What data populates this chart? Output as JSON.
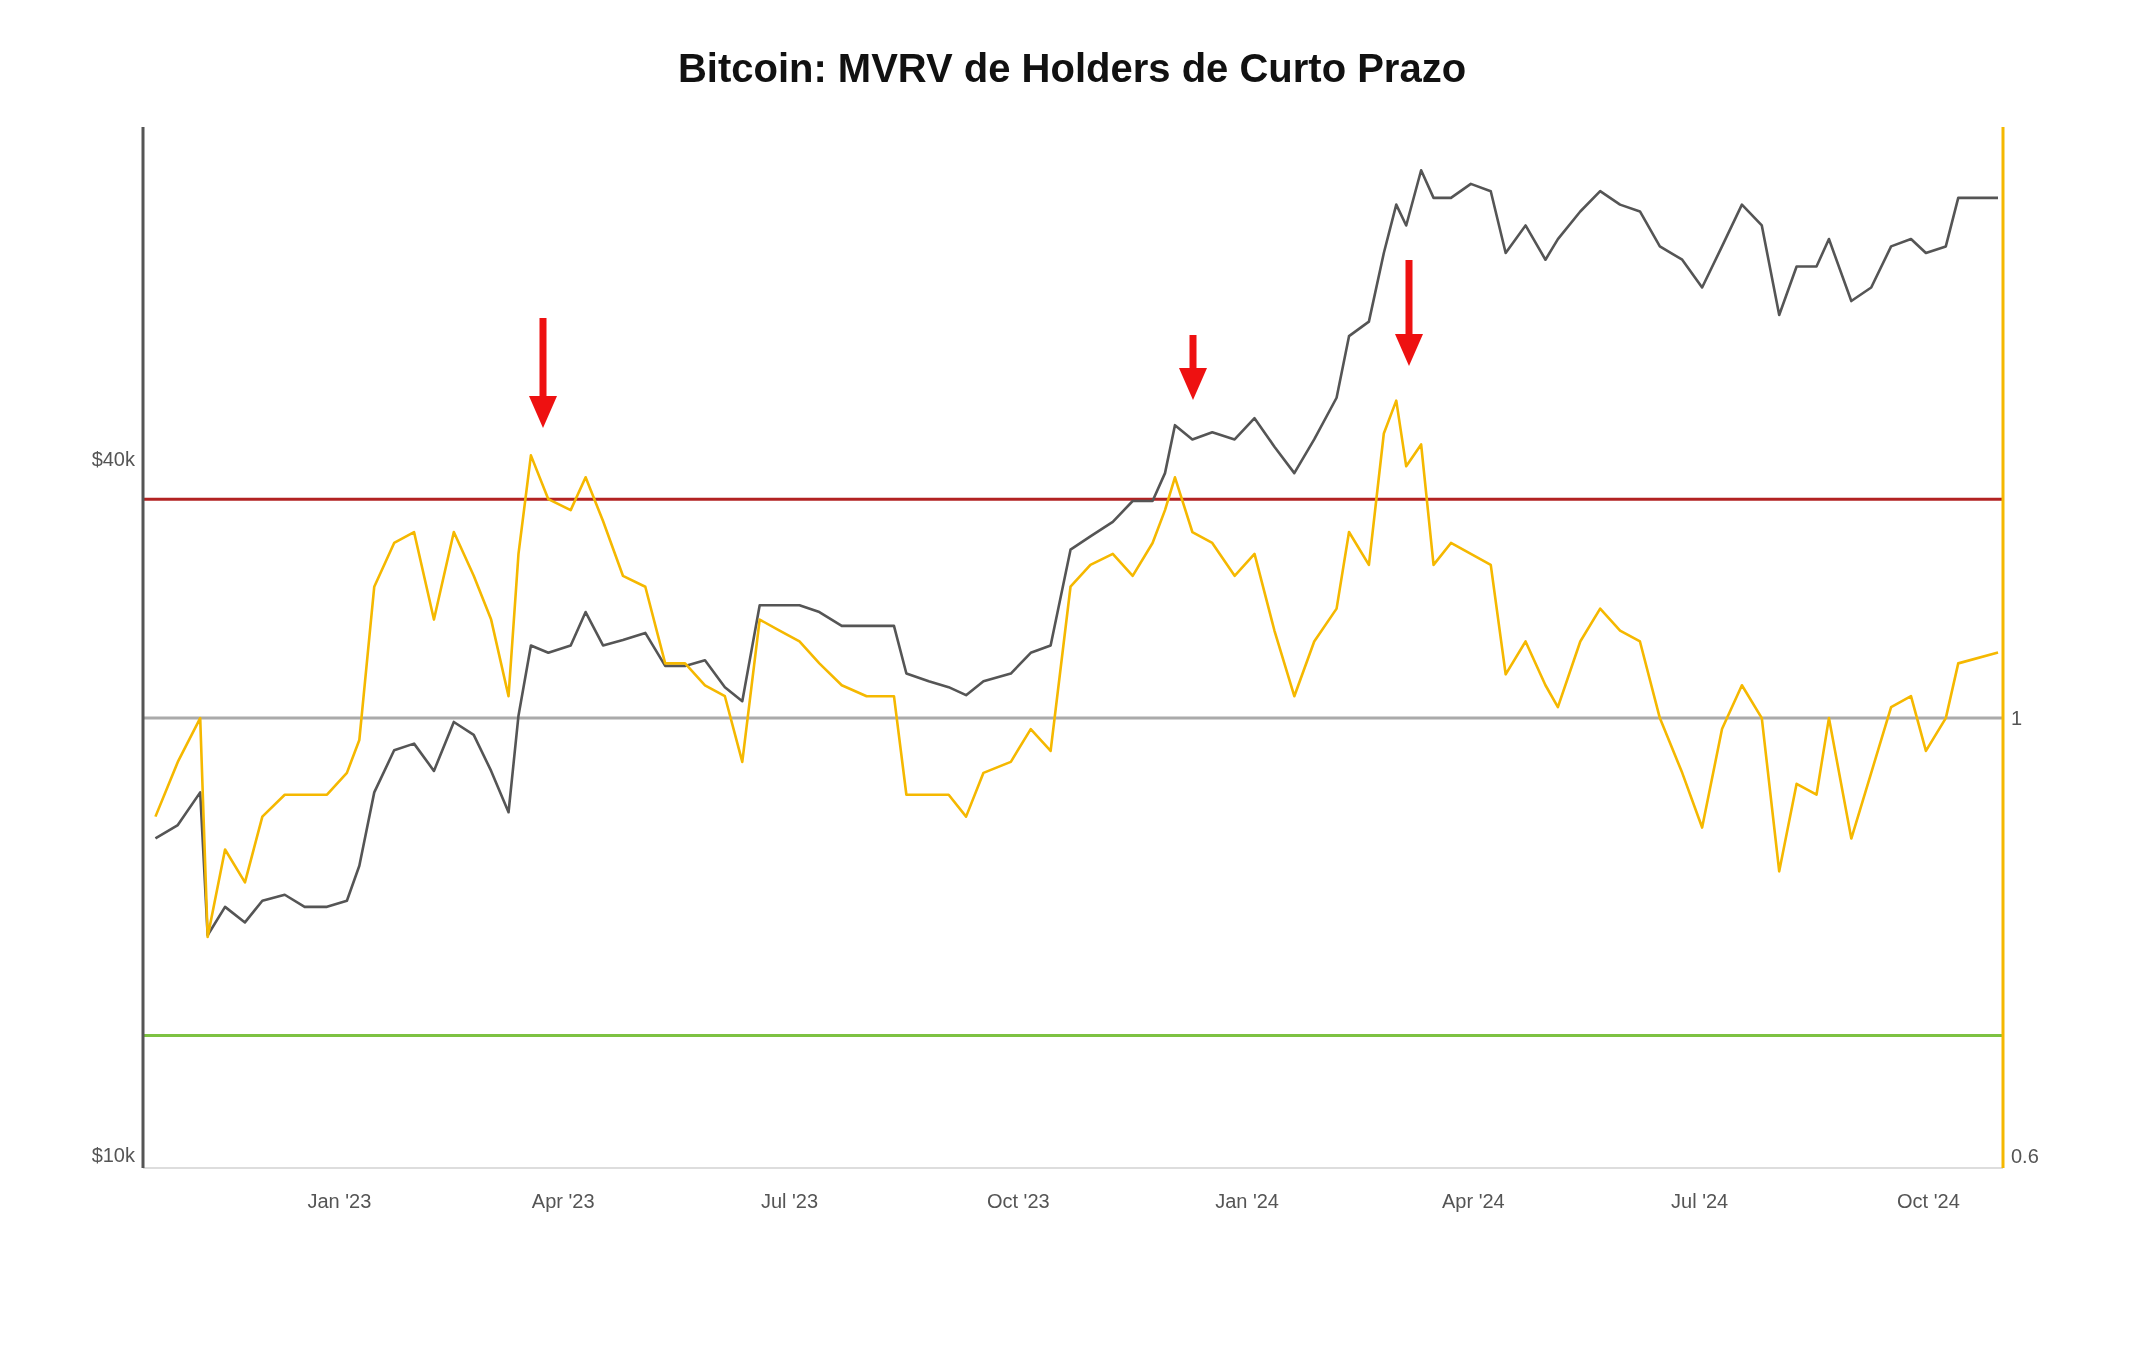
{
  "chart_data": {
    "type": "line",
    "title": "Bitcoin: MVRV de Holders de Curto Prazo",
    "x": [
      "2022-10-19",
      "2022-10-28",
      "2022-11-06",
      "2022-11-09",
      "2022-11-16",
      "2022-11-24",
      "2022-12-01",
      "2022-12-10",
      "2022-12-18",
      "2022-12-27",
      "2023-01-04",
      "2023-01-09",
      "2023-01-15",
      "2023-01-23",
      "2023-01-31",
      "2023-02-08",
      "2023-02-16",
      "2023-02-24",
      "2023-03-03",
      "2023-03-10",
      "2023-03-14",
      "2023-03-19",
      "2023-03-26",
      "2023-04-04",
      "2023-04-10",
      "2023-04-17",
      "2023-04-25",
      "2023-05-04",
      "2023-05-12",
      "2023-05-20",
      "2023-05-28",
      "2023-06-05",
      "2023-06-12",
      "2023-06-19",
      "2023-06-27",
      "2023-07-05",
      "2023-07-13",
      "2023-07-22",
      "2023-08-01",
      "2023-08-12",
      "2023-08-17",
      "2023-08-26",
      "2023-09-03",
      "2023-09-10",
      "2023-09-17",
      "2023-09-28",
      "2023-10-06",
      "2023-10-14",
      "2023-10-22",
      "2023-10-30",
      "2023-11-08",
      "2023-11-16",
      "2023-11-24",
      "2023-11-29",
      "2023-12-03",
      "2023-12-10",
      "2023-12-18",
      "2023-12-27",
      "2024-01-04",
      "2024-01-12",
      "2024-01-20",
      "2024-01-28",
      "2024-02-06",
      "2024-02-11",
      "2024-02-19",
      "2024-02-25",
      "2024-03-01",
      "2024-03-05",
      "2024-03-11",
      "2024-03-16",
      "2024-03-23",
      "2024-03-31",
      "2024-04-08",
      "2024-04-14",
      "2024-04-22",
      "2024-04-30",
      "2024-05-05",
      "2024-05-14",
      "2024-05-22",
      "2024-05-30",
      "2024-06-07",
      "2024-06-15",
      "2024-06-24",
      "2024-07-02",
      "2024-07-10",
      "2024-07-18",
      "2024-07-26",
      "2024-08-02",
      "2024-08-09",
      "2024-08-17",
      "2024-08-22",
      "2024-08-31",
      "2024-09-08",
      "2024-09-16",
      "2024-09-24",
      "2024-09-30",
      "2024-10-08",
      "2024-10-13",
      "2024-10-29"
    ],
    "series": [
      {
        "color": "#555555",
        "values": [
          18800,
          19300,
          20600,
          15500,
          16400,
          15900,
          16600,
          16800,
          16400,
          16400,
          16600,
          17800,
          20600,
          22400,
          22700,
          21500,
          23700,
          23100,
          21500,
          19800,
          24000,
          27600,
          27200,
          27600,
          29500,
          27600,
          27900,
          28300,
          26500,
          26500,
          26800,
          25400,
          24700,
          29900,
          29900,
          29900,
          29500,
          28700,
          28700,
          28700,
          26100,
          25700,
          25400,
          25000,
          25700,
          26100,
          27200,
          27600,
          33400,
          34300,
          35300,
          36800,
          36800,
          38900,
          42800,
          41600,
          42200,
          41600,
          43400,
          41000,
          38900,
          41600,
          45200,
          51100,
          52600,
          60300,
          66400,
          63700,
          71100,
          67300,
          67300,
          69200,
          68200,
          60300,
          63700,
          59500,
          62000,
          65500,
          68200,
          66400,
          65500,
          61100,
          59500,
          56300,
          61100,
          66400,
          63700,
          53300,
          58700,
          58700,
          62000,
          54800,
          56300,
          61100,
          62000,
          60300,
          61100,
          67300,
          67300
        ]
      },
      {
        "color": "#f5b800",
        "axis": "y2",
        "values": [
          0.91,
          0.96,
          1.0,
          0.8,
          0.88,
          0.85,
          0.91,
          0.93,
          0.93,
          0.93,
          0.95,
          0.98,
          1.12,
          1.16,
          1.17,
          1.09,
          1.17,
          1.13,
          1.09,
          1.02,
          1.15,
          1.24,
          1.2,
          1.19,
          1.22,
          1.18,
          1.13,
          1.12,
          1.05,
          1.05,
          1.03,
          1.02,
          0.96,
          1.09,
          1.08,
          1.07,
          1.05,
          1.03,
          1.02,
          1.02,
          0.93,
          0.93,
          0.93,
          0.91,
          0.95,
          0.96,
          0.99,
          0.97,
          1.12,
          1.14,
          1.15,
          1.13,
          1.16,
          1.19,
          1.22,
          1.17,
          1.16,
          1.13,
          1.15,
          1.08,
          1.02,
          1.07,
          1.1,
          1.17,
          1.14,
          1.26,
          1.29,
          1.23,
          1.25,
          1.14,
          1.16,
          1.15,
          1.14,
          1.04,
          1.07,
          1.03,
          1.01,
          1.07,
          1.1,
          1.08,
          1.07,
          1.0,
          0.95,
          0.9,
          0.99,
          1.03,
          1.0,
          0.86,
          0.94,
          0.93,
          1.0,
          0.89,
          0.95,
          1.01,
          1.02,
          0.97,
          1.0,
          1.05,
          1.06
        ]
      }
    ],
    "xlim": [
      "2022-10-14",
      "2024-10-31"
    ],
    "xticks": [
      {
        "value": "2023-01-01",
        "label": "Jan '23"
      },
      {
        "value": "2023-04-01",
        "label": "Apr '23"
      },
      {
        "value": "2023-07-01",
        "label": "Jul '23"
      },
      {
        "value": "2023-10-01",
        "label": "Oct '23"
      },
      {
        "value": "2024-01-01",
        "label": "Jan '24"
      },
      {
        "value": "2024-04-01",
        "label": "Apr '24"
      },
      {
        "value": "2024-07-01",
        "label": "Jul '24"
      },
      {
        "value": "2024-10-01",
        "label": "Oct '24"
      }
    ],
    "ylim": [
      9750,
      77500
    ],
    "yticks": [
      {
        "value": 10000,
        "label": "$10k"
      },
      {
        "value": 40000,
        "label": "$40k"
      }
    ],
    "log": "y",
    "y2lim": [
      0.589,
      1.54
    ],
    "y2ticks": [
      0.6,
      1
    ],
    "ref_lines": [
      {
        "axis": "y2",
        "value": 1.2,
        "color": "#b22222"
      },
      {
        "axis": "y2",
        "value": 1,
        "color": "#aaaaaa"
      },
      {
        "axis": "y2",
        "value": 0.71,
        "color": "#7dc242"
      }
    ],
    "marker": "none",
    "line_style": "solid",
    "grid": false,
    "legend": false
  }
}
